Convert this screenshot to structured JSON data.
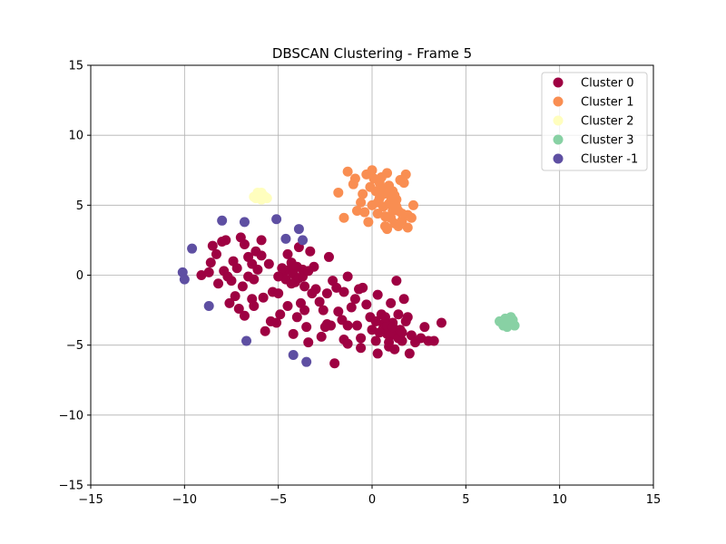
{
  "chart_data": {
    "type": "scatter",
    "title": "DBSCAN Clustering - Frame 5",
    "xlabel": "",
    "ylabel": "",
    "xlim": [
      -15,
      15
    ],
    "ylim": [
      -15,
      15
    ],
    "xticks": [
      -15,
      -10,
      -5,
      0,
      5,
      10,
      15
    ],
    "yticks": [
      -15,
      -10,
      -5,
      0,
      5,
      10,
      15
    ],
    "xtick_labels": [
      "−15",
      "−10",
      "−5",
      "0",
      "5",
      "10",
      "15"
    ],
    "ytick_labels": [
      "−15",
      "−10",
      "−5",
      "0",
      "5",
      "10",
      "15"
    ],
    "grid": true,
    "legend_position": "top-right",
    "series": [
      {
        "name": "Cluster 0",
        "color": "#9e0142",
        "points": [
          [
            -9.1,
            0.0
          ],
          [
            -8.7,
            0.2
          ],
          [
            -8.5,
            2.1
          ],
          [
            -8.3,
            1.5
          ],
          [
            -8.0,
            2.4
          ],
          [
            -7.8,
            2.5
          ],
          [
            -8.6,
            0.9
          ],
          [
            -8.2,
            -0.6
          ],
          [
            -7.9,
            0.3
          ],
          [
            -7.5,
            -0.4
          ],
          [
            -7.2,
            0.5
          ],
          [
            -7.4,
            1.0
          ],
          [
            -7.0,
            2.7
          ],
          [
            -6.8,
            2.2
          ],
          [
            -6.6,
            1.3
          ],
          [
            -6.2,
            1.7
          ],
          [
            -6.1,
            0.4
          ],
          [
            -6.6,
            -0.1
          ],
          [
            -6.9,
            -0.8
          ],
          [
            -7.3,
            -1.5
          ],
          [
            -7.1,
            -2.4
          ],
          [
            -6.8,
            -2.9
          ],
          [
            -6.4,
            -1.7
          ],
          [
            -5.8,
            -1.6
          ],
          [
            -5.5,
            0.8
          ],
          [
            -5.9,
            1.4
          ],
          [
            -5.3,
            -1.2
          ],
          [
            -5.1,
            -3.4
          ],
          [
            -5.7,
            -4.0
          ],
          [
            -4.9,
            -2.8
          ],
          [
            -4.7,
            0.2
          ],
          [
            -4.5,
            1.5
          ],
          [
            -4.3,
            0.9
          ],
          [
            -4.1,
            -0.5
          ],
          [
            -3.9,
            2.0
          ],
          [
            -3.7,
            0.4
          ],
          [
            -3.6,
            -0.8
          ],
          [
            -3.8,
            -2.0
          ],
          [
            -4.0,
            -3.0
          ],
          [
            -3.5,
            -3.7
          ],
          [
            -3.3,
            1.7
          ],
          [
            -3.1,
            0.6
          ],
          [
            -3.0,
            -1.0
          ],
          [
            -2.8,
            -1.9
          ],
          [
            -2.6,
            -2.5
          ],
          [
            -2.7,
            -4.4
          ],
          [
            -2.4,
            -3.5
          ],
          [
            -2.2,
            -3.6
          ],
          [
            -2.1,
            -0.4
          ],
          [
            -2.3,
            1.3
          ],
          [
            -1.9,
            -0.9
          ],
          [
            -1.8,
            -2.6
          ],
          [
            -1.6,
            -3.2
          ],
          [
            -1.5,
            -4.6
          ],
          [
            -1.3,
            -3.6
          ],
          [
            -1.1,
            -2.3
          ],
          [
            -1.3,
            -0.1
          ],
          [
            -0.9,
            -1.7
          ],
          [
            -0.8,
            -3.6
          ],
          [
            -0.6,
            -4.5
          ],
          [
            -0.5,
            -0.9
          ],
          [
            -0.3,
            -2.1
          ],
          [
            -0.1,
            -3.0
          ],
          [
            0.0,
            -3.9
          ],
          [
            0.2,
            -4.7
          ],
          [
            0.3,
            -1.4
          ],
          [
            0.5,
            -2.8
          ],
          [
            0.6,
            -3.5
          ],
          [
            0.8,
            -4.2
          ],
          [
            0.9,
            -5.1
          ],
          [
            1.0,
            -2.0
          ],
          [
            1.1,
            -3.4
          ],
          [
            1.2,
            -4.0
          ],
          [
            1.3,
            -0.4
          ],
          [
            1.4,
            -2.8
          ],
          [
            1.5,
            -3.9
          ],
          [
            1.6,
            -4.7
          ],
          [
            1.7,
            -1.7
          ],
          [
            1.8,
            -3.3
          ],
          [
            1.9,
            -3.0
          ],
          [
            2.1,
            -4.3
          ],
          [
            2.3,
            -4.8
          ],
          [
            2.6,
            -4.5
          ],
          [
            2.8,
            -3.7
          ],
          [
            3.0,
            -4.7
          ],
          [
            3.3,
            -4.7
          ],
          [
            3.7,
            -3.4
          ],
          [
            2.0,
            -5.6
          ],
          [
            1.2,
            -5.3
          ],
          [
            0.3,
            -5.6
          ],
          [
            -0.6,
            -5.2
          ],
          [
            -1.3,
            -4.9
          ],
          [
            -2.0,
            -6.3
          ],
          [
            -3.4,
            -4.8
          ],
          [
            -4.2,
            -4.2
          ],
          [
            -5.4,
            -3.3
          ],
          [
            -6.4,
            0.8
          ],
          [
            -5.9,
            2.5
          ],
          [
            -6.3,
            -0.3
          ],
          [
            -7.6,
            -2.0
          ],
          [
            -4.4,
            0.4
          ],
          [
            -4.2,
            0.1
          ],
          [
            -4.0,
            0.6
          ],
          [
            -3.9,
            -0.2
          ],
          [
            -4.6,
            -0.3
          ],
          [
            -4.8,
            0.5
          ],
          [
            -3.7,
            -0.1
          ],
          [
            -4.3,
            -0.6
          ],
          [
            -3.4,
            0.3
          ],
          [
            -5.0,
            -0.1
          ],
          [
            0.6,
            -3.8
          ],
          [
            0.8,
            -3.6
          ],
          [
            1.0,
            -4.3
          ],
          [
            0.4,
            -4.1
          ],
          [
            1.4,
            -4.5
          ],
          [
            1.1,
            -3.7
          ],
          [
            0.2,
            -3.3
          ],
          [
            0.9,
            -4.8
          ],
          [
            1.6,
            -4.1
          ],
          [
            0.7,
            -3.0
          ],
          [
            -7.7,
            -0.1
          ],
          [
            -6.3,
            -2.2
          ],
          [
            -5.0,
            -1.3
          ],
          [
            -3.2,
            -1.3
          ],
          [
            -2.4,
            -1.3
          ],
          [
            -2.5,
            -3.7
          ],
          [
            -3.6,
            -2.5
          ],
          [
            -4.5,
            -2.2
          ],
          [
            -1.5,
            -1.2
          ],
          [
            -0.7,
            -1.0
          ]
        ]
      },
      {
        "name": "Cluster 1",
        "color": "#f98e52",
        "points": [
          [
            -1.3,
            7.4
          ],
          [
            -1.8,
            5.9
          ],
          [
            -1.5,
            4.1
          ],
          [
            -1.0,
            6.5
          ],
          [
            -0.8,
            4.6
          ],
          [
            -0.5,
            5.8
          ],
          [
            -0.3,
            7.2
          ],
          [
            0.0,
            7.5
          ],
          [
            -0.2,
            3.8
          ],
          [
            0.1,
            6.9
          ],
          [
            0.3,
            4.4
          ],
          [
            0.4,
            5.5
          ],
          [
            0.5,
            6.2
          ],
          [
            0.6,
            4.9
          ],
          [
            0.7,
            3.5
          ],
          [
            0.8,
            7.3
          ],
          [
            0.9,
            5.1
          ],
          [
            1.0,
            4.1
          ],
          [
            1.1,
            6.0
          ],
          [
            1.2,
            3.7
          ],
          [
            1.3,
            5.4
          ],
          [
            1.4,
            4.6
          ],
          [
            1.5,
            6.8
          ],
          [
            1.6,
            3.9
          ],
          [
            1.8,
            7.2
          ],
          [
            1.9,
            4.3
          ],
          [
            2.1,
            4.1
          ],
          [
            2.2,
            5.0
          ],
          [
            1.7,
            6.6
          ],
          [
            0.2,
            6.0
          ],
          [
            0.6,
            5.8
          ],
          [
            0.9,
            6.4
          ],
          [
            0.4,
            6.6
          ],
          [
            1.0,
            5.6
          ],
          [
            0.7,
            4.2
          ],
          [
            1.3,
            4.9
          ],
          [
            0.3,
            5.2
          ],
          [
            0.8,
            3.3
          ],
          [
            1.2,
            5.7
          ],
          [
            -0.6,
            5.2
          ],
          [
            -0.9,
            6.9
          ],
          [
            -0.4,
            4.5
          ],
          [
            1.6,
            4.4
          ],
          [
            1.1,
            4.6
          ],
          [
            1.4,
            3.5
          ],
          [
            0.5,
            7.0
          ],
          [
            -0.1,
            6.3
          ],
          [
            1.9,
            3.4
          ],
          [
            0.0,
            5.0
          ],
          [
            0.9,
            5.8
          ]
        ]
      },
      {
        "name": "Cluster 2",
        "color": "#fffebe",
        "points": [
          [
            -6.1,
            5.7
          ],
          [
            -5.9,
            5.9
          ],
          [
            -6.2,
            5.5
          ],
          [
            -5.7,
            5.6
          ],
          [
            -5.9,
            5.4
          ],
          [
            -6.0,
            5.8
          ],
          [
            -5.8,
            5.7
          ],
          [
            -6.3,
            5.6
          ],
          [
            -5.6,
            5.5
          ],
          [
            -6.1,
            5.9
          ]
        ]
      },
      {
        "name": "Cluster 3",
        "color": "#88d1a4",
        "points": [
          [
            6.8,
            -3.3
          ],
          [
            7.1,
            -3.1
          ],
          [
            7.3,
            -3.5
          ],
          [
            7.5,
            -3.2
          ],
          [
            7.2,
            -3.7
          ],
          [
            7.6,
            -3.6
          ],
          [
            7.0,
            -3.6
          ],
          [
            7.4,
            -3.0
          ],
          [
            7.3,
            -3.3
          ],
          [
            7.5,
            -3.5
          ]
        ]
      },
      {
        "name": "Cluster -1",
        "color": "#5e4fa2",
        "points": [
          [
            -8.0,
            3.9
          ],
          [
            -6.8,
            3.8
          ],
          [
            -5.1,
            4.0
          ],
          [
            -3.9,
            3.3
          ],
          [
            -4.6,
            2.6
          ],
          [
            -3.7,
            2.5
          ],
          [
            -9.6,
            1.9
          ],
          [
            -10.1,
            0.2
          ],
          [
            -10.0,
            -0.3
          ],
          [
            -8.7,
            -2.2
          ],
          [
            -6.7,
            -4.7
          ],
          [
            -4.2,
            -5.7
          ],
          [
            -3.5,
            -6.2
          ]
        ]
      }
    ]
  }
}
